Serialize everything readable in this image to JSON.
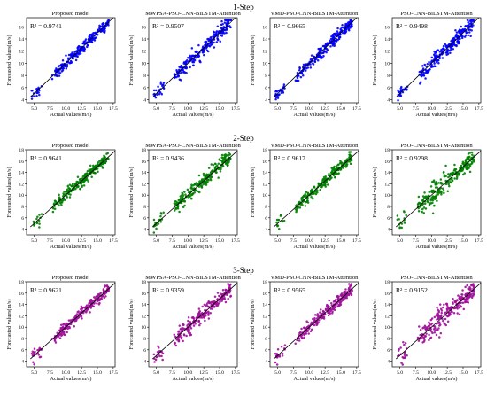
{
  "figure": {
    "row_titles": [
      "1-Step",
      "2-Step",
      "3-Step"
    ],
    "panel_titles": [
      "Proposed model",
      "MWPSA-PSO-CNN-BiLSTM-Attention",
      "VMD-PSO-CNN-BiLSTM-Attention",
      "PSO-CNN-BiLSTM-Attention"
    ]
  },
  "chart_data": [
    {
      "type": "scatter",
      "title": "Proposed model",
      "row": "1-Step",
      "r2_label": "R² = 0.9741",
      "r2": 0.9741,
      "color": "#0000ff",
      "xlabel": "Actual values(m/s)",
      "ylabel": "Forecasted values(m/s)",
      "xlim": [
        3.8,
        17.8
      ],
      "ylim": [
        3.5,
        17.5
      ],
      "xticks": [
        5.0,
        7.5,
        10.0,
        12.5,
        15.0,
        17.5
      ],
      "xtick_labels": [
        "5.0",
        "7.5",
        "10.0",
        "12.5",
        "15.0",
        "17.5"
      ],
      "yticks": [
        4,
        6,
        8,
        10,
        12,
        14,
        16
      ],
      "ytick_labels": [
        "4",
        "6",
        "8",
        "10",
        "12",
        "14",
        "16"
      ],
      "reference_line": "y = x",
      "n_points": 260,
      "seed": 11
    },
    {
      "type": "scatter",
      "title": "MWPSA-PSO-CNN-BiLSTM-Attention",
      "row": "1-Step",
      "r2_label": "R² = 0.9507",
      "r2": 0.9507,
      "color": "#0000ff",
      "xlabel": "Actual values(m/s)",
      "ylabel": "Forecasted values(m/s)",
      "xlim": [
        3.8,
        17.8
      ],
      "ylim": [
        3.5,
        17.5
      ],
      "xticks": [
        5.0,
        7.5,
        10.0,
        12.5,
        15.0,
        17.5
      ],
      "xtick_labels": [
        "5.0",
        "7.5",
        "10.0",
        "12.5",
        "15.0",
        "17.5"
      ],
      "yticks": [
        4,
        6,
        8,
        10,
        12,
        14,
        16
      ],
      "ytick_labels": [
        "4",
        "6",
        "8",
        "10",
        "12",
        "14",
        "16"
      ],
      "reference_line": "y = x",
      "n_points": 260,
      "seed": 23
    },
    {
      "type": "scatter",
      "title": "VMD-PSO-CNN-BiLSTM-Attention",
      "row": "1-Step",
      "r2_label": "R² = 0.9665",
      "r2": 0.9665,
      "color": "#0000ff",
      "xlabel": "Actual values(m/s)",
      "ylabel": "Forecasted values(m/s)",
      "xlim": [
        3.8,
        17.8
      ],
      "ylim": [
        3.5,
        17.5
      ],
      "xticks": [
        5.0,
        7.5,
        10.0,
        12.5,
        15.0,
        17.5
      ],
      "xtick_labels": [
        "5.0",
        "7.5",
        "10.0",
        "12.5",
        "15.0",
        "17.5"
      ],
      "yticks": [
        4,
        6,
        8,
        10,
        12,
        14,
        16
      ],
      "ytick_labels": [
        "4",
        "6",
        "8",
        "10",
        "12",
        "14",
        "16"
      ],
      "reference_line": "y = x",
      "n_points": 260,
      "seed": 37
    },
    {
      "type": "scatter",
      "title": "PSO-CNN-BiLSTM-Attention",
      "row": "1-Step",
      "r2_label": "R² = 0.9498",
      "r2": 0.9498,
      "color": "#0000ff",
      "xlabel": "Actual values(m/s)",
      "ylabel": "Forecasted values(m/s)",
      "xlim": [
        3.8,
        17.8
      ],
      "ylim": [
        3.5,
        17.5
      ],
      "xticks": [
        5.0,
        7.5,
        10.0,
        12.5,
        15.0,
        17.5
      ],
      "xtick_labels": [
        "5.0",
        "7.5",
        "10.0",
        "12.5",
        "15.0",
        "17.5"
      ],
      "yticks": [
        4,
        6,
        8,
        10,
        12,
        14,
        16
      ],
      "ytick_labels": [
        "4",
        "6",
        "8",
        "10",
        "12",
        "14",
        "16"
      ],
      "reference_line": "y = x",
      "n_points": 260,
      "seed": 41
    },
    {
      "type": "scatter",
      "title": "Proposed model",
      "row": "2-Step",
      "r2_label": "R² = 0.9641",
      "r2": 0.9641,
      "color": "#008000",
      "xlabel": "Actual values(m/s)",
      "ylabel": "Forecasted values(m/s)",
      "xlim": [
        3.8,
        17.8
      ],
      "ylim": [
        3.0,
        18.0
      ],
      "xticks": [
        5.0,
        7.5,
        10.0,
        12.5,
        15.0,
        17.5
      ],
      "xtick_labels": [
        "5.0",
        "7.5",
        "10.0",
        "12.5",
        "15.0",
        "17.5"
      ],
      "yticks": [
        4,
        6,
        8,
        10,
        12,
        14,
        16,
        18
      ],
      "ytick_labels": [
        "4",
        "6",
        "8",
        "10",
        "12",
        "14",
        "16",
        "18"
      ],
      "reference_line": "y = x",
      "n_points": 260,
      "seed": 53
    },
    {
      "type": "scatter",
      "title": "MWPSA-PSO-CNN-BiLSTM-Attention",
      "row": "2-Step",
      "r2_label": "R² = 0.9436",
      "r2": 0.9436,
      "color": "#008000",
      "xlabel": "Actual values(m/s)",
      "ylabel": "Forecasted values(m/s)",
      "xlim": [
        3.8,
        17.8
      ],
      "ylim": [
        3.0,
        18.0
      ],
      "xticks": [
        5.0,
        7.5,
        10.0,
        12.5,
        15.0,
        17.5
      ],
      "xtick_labels": [
        "5.0",
        "7.5",
        "10.0",
        "12.5",
        "15.0",
        "17.5"
      ],
      "yticks": [
        4,
        6,
        8,
        10,
        12,
        14,
        16,
        18
      ],
      "ytick_labels": [
        "4",
        "6",
        "8",
        "10",
        "12",
        "14",
        "16",
        "18"
      ],
      "reference_line": "y = x",
      "n_points": 260,
      "seed": 67
    },
    {
      "type": "scatter",
      "title": "VMD-PSO-CNN-BiLSTM-Attention",
      "row": "2-Step",
      "r2_label": "R² = 0.9617",
      "r2": 0.9617,
      "color": "#008000",
      "xlabel": "Actual values(m/s)",
      "ylabel": "Forecasted values(m/s)",
      "xlim": [
        3.8,
        17.8
      ],
      "ylim": [
        3.0,
        18.0
      ],
      "xticks": [
        5.0,
        7.5,
        10.0,
        12.5,
        15.0,
        17.5
      ],
      "xtick_labels": [
        "5.0",
        "7.5",
        "10.0",
        "12.5",
        "15.0",
        "17.5"
      ],
      "yticks": [
        4,
        6,
        8,
        10,
        12,
        14,
        16,
        18
      ],
      "ytick_labels": [
        "4",
        "6",
        "8",
        "10",
        "12",
        "14",
        "16",
        "18"
      ],
      "reference_line": "y = x",
      "n_points": 260,
      "seed": 71
    },
    {
      "type": "scatter",
      "title": "PSO-CNN-BiLSTM-Attention",
      "row": "2-Step",
      "r2_label": "R² = 0.9298",
      "r2": 0.9298,
      "color": "#008000",
      "xlabel": "Actual values(m/s)",
      "ylabel": "Forecasted values(m/s)",
      "xlim": [
        3.8,
        17.8
      ],
      "ylim": [
        3.0,
        18.0
      ],
      "xticks": [
        5.0,
        7.5,
        10.0,
        12.5,
        15.0,
        17.5
      ],
      "xtick_labels": [
        "5.0",
        "7.5",
        "10.0",
        "12.5",
        "15.0",
        "17.5"
      ],
      "yticks": [
        4,
        6,
        8,
        10,
        12,
        14,
        16,
        18
      ],
      "ytick_labels": [
        "4",
        "6",
        "8",
        "10",
        "12",
        "14",
        "16",
        "18"
      ],
      "reference_line": "y = x",
      "n_points": 260,
      "seed": 83
    },
    {
      "type": "scatter",
      "title": "Proposed model",
      "row": "3-Step",
      "r2_label": "R² = 0.9621",
      "r2": 0.9621,
      "color": "#a0109a",
      "xlabel": "Actual values(m/s)",
      "ylabel": "Forecasted values(m/s)",
      "xlim": [
        3.8,
        17.8
      ],
      "ylim": [
        3.0,
        18.0
      ],
      "xticks": [
        5.0,
        7.5,
        10.0,
        12.5,
        15.0,
        17.5
      ],
      "xtick_labels": [
        "5.0",
        "7.5",
        "10.0",
        "12.5",
        "15.0",
        "17.5"
      ],
      "yticks": [
        4,
        6,
        8,
        10,
        12,
        14,
        16,
        18
      ],
      "ytick_labels": [
        "4",
        "6",
        "8",
        "10",
        "12",
        "14",
        "16",
        "18"
      ],
      "reference_line": "y = x",
      "n_points": 260,
      "seed": 97
    },
    {
      "type": "scatter",
      "title": "MWPSA-PSO-CNN-BiLSTM-Attention",
      "row": "3-Step",
      "r2_label": "R² = 0.9359",
      "r2": 0.9359,
      "color": "#a0109a",
      "xlabel": "Actual values(m/s)",
      "ylabel": "Forecasted values(m/s)",
      "xlim": [
        3.8,
        17.8
      ],
      "ylim": [
        3.0,
        18.0
      ],
      "xticks": [
        5.0,
        7.5,
        10.0,
        12.5,
        15.0,
        17.5
      ],
      "xtick_labels": [
        "5.0",
        "7.5",
        "10.0",
        "12.5",
        "15.0",
        "17.5"
      ],
      "yticks": [
        4,
        6,
        8,
        10,
        12,
        14,
        16,
        18
      ],
      "ytick_labels": [
        "4",
        "6",
        "8",
        "10",
        "12",
        "14",
        "16",
        "18"
      ],
      "reference_line": "y = x",
      "n_points": 260,
      "seed": 101
    },
    {
      "type": "scatter",
      "title": "VMD-PSO-CNN-BiLSTM-Attention",
      "row": "3-Step",
      "r2_label": "R² = 0.9565",
      "r2": 0.9565,
      "color": "#a0109a",
      "xlabel": "Actual values(m/s)",
      "ylabel": "Forecasted values(m/s)",
      "xlim": [
        3.8,
        17.8
      ],
      "ylim": [
        3.0,
        18.0
      ],
      "xticks": [
        5.0,
        7.5,
        10.0,
        12.5,
        15.0,
        17.5
      ],
      "xtick_labels": [
        "5.0",
        "7.5",
        "10.0",
        "12.5",
        "15.0",
        "17.5"
      ],
      "yticks": [
        4,
        6,
        8,
        10,
        12,
        14,
        16,
        18
      ],
      "ytick_labels": [
        "4",
        "6",
        "8",
        "10",
        "12",
        "14",
        "16",
        "18"
      ],
      "reference_line": "y = x",
      "n_points": 260,
      "seed": 113
    },
    {
      "type": "scatter",
      "title": "PSO-CNN-BiLSTM-Attention",
      "row": "3-Step",
      "r2_label": "R² = 0.9152",
      "r2": 0.9152,
      "color": "#a0109a",
      "xlabel": "Actual values(m/s)",
      "ylabel": "Forecasted values(m/s)",
      "xlim": [
        3.8,
        17.8
      ],
      "ylim": [
        3.0,
        18.0
      ],
      "xticks": [
        5.0,
        7.5,
        10.0,
        12.5,
        15.0,
        17.5
      ],
      "xtick_labels": [
        "5.0",
        "7.5",
        "10.0",
        "12.5",
        "15.0",
        "17.5"
      ],
      "yticks": [
        4,
        6,
        8,
        10,
        12,
        14,
        16,
        18
      ],
      "ytick_labels": [
        "4",
        "6",
        "8",
        "10",
        "12",
        "14",
        "16",
        "18"
      ],
      "reference_line": "y = x",
      "n_points": 260,
      "seed": 127
    }
  ]
}
